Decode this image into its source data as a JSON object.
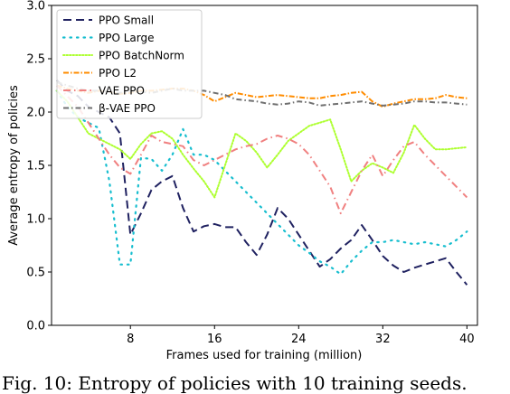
{
  "chart_data": {
    "type": "line",
    "title": "",
    "xlabel": "Frames used for training (million)",
    "ylabel": "Average entropy of policies",
    "xlim": [
      0.5,
      41
    ],
    "ylim": [
      0.0,
      3.0
    ],
    "xticks": [
      8,
      16,
      24,
      32,
      40
    ],
    "yticks": [
      0.0,
      0.5,
      1.0,
      1.5,
      2.0,
      2.5,
      3.0
    ],
    "ytick_labels": [
      "0.0",
      "0.5",
      "1.0",
      "1.5",
      "2.0",
      "2.5",
      "3.0"
    ],
    "grid": false,
    "legend_position": "top-left",
    "series": [
      {
        "name": "PPO Small",
        "color": "#1f2160",
        "x": [
          1,
          2,
          3,
          4,
          5,
          6,
          7,
          8,
          9,
          10,
          11,
          12,
          13,
          14,
          15,
          16,
          17,
          18,
          19,
          20,
          21,
          22,
          23,
          24,
          25,
          26,
          27,
          28,
          29,
          30,
          31,
          32,
          33,
          34,
          35,
          36,
          37,
          38,
          39,
          40
        ],
        "values": [
          2.3,
          2.2,
          2.15,
          2.05,
          2.0,
          1.95,
          1.8,
          0.85,
          1.05,
          1.27,
          1.35,
          1.4,
          1.1,
          0.88,
          0.93,
          0.95,
          0.92,
          0.92,
          0.78,
          0.66,
          0.85,
          1.1,
          1.0,
          0.85,
          0.7,
          0.55,
          0.62,
          0.72,
          0.8,
          0.94,
          0.8,
          0.65,
          0.56,
          0.5,
          0.54,
          0.57,
          0.6,
          0.63,
          0.5,
          0.38
        ]
      },
      {
        "name": "PPO Large",
        "color": "#17becf",
        "x": [
          1,
          2,
          3,
          4,
          5,
          6,
          7,
          8,
          9,
          10,
          11,
          12,
          13,
          14,
          15,
          16,
          17,
          18,
          19,
          20,
          21,
          22,
          23,
          24,
          25,
          26,
          27,
          28,
          29,
          30,
          31,
          32,
          33,
          34,
          35,
          36,
          37,
          38,
          39,
          40
        ],
        "values": [
          2.2,
          2.05,
          1.95,
          1.9,
          1.85,
          1.35,
          0.57,
          0.57,
          1.57,
          1.56,
          1.45,
          1.6,
          1.84,
          1.6,
          1.6,
          1.55,
          1.45,
          1.35,
          1.25,
          1.15,
          1.05,
          0.95,
          0.85,
          0.75,
          0.68,
          0.6,
          0.55,
          0.48,
          0.6,
          0.7,
          0.78,
          0.78,
          0.8,
          0.78,
          0.76,
          0.78,
          0.76,
          0.74,
          0.8,
          0.88
        ]
      },
      {
        "name": "PPO BatchNorm",
        "color": "#adff2f",
        "x": [
          1,
          2,
          3,
          4,
          5,
          6,
          7,
          8,
          9,
          10,
          11,
          12,
          13,
          14,
          15,
          16,
          17,
          18,
          19,
          20,
          21,
          22,
          23,
          24,
          25,
          26,
          27,
          28,
          29,
          30,
          31,
          32,
          33,
          34,
          35,
          36,
          37,
          38,
          39,
          40
        ],
        "values": [
          2.2,
          2.1,
          1.95,
          1.8,
          1.75,
          1.7,
          1.65,
          1.56,
          1.7,
          1.8,
          1.82,
          1.75,
          1.6,
          1.47,
          1.35,
          1.2,
          1.5,
          1.8,
          1.73,
          1.62,
          1.48,
          1.6,
          1.73,
          1.8,
          1.87,
          1.9,
          1.93,
          1.65,
          1.35,
          1.45,
          1.52,
          1.48,
          1.43,
          1.62,
          1.88,
          1.75,
          1.65,
          1.65,
          1.66,
          1.67
        ]
      },
      {
        "name": "PPO L2",
        "color": "#ff8c00",
        "x": [
          1,
          2,
          3,
          4,
          5,
          6,
          7,
          8,
          9,
          10,
          11,
          12,
          13,
          14,
          15,
          16,
          17,
          18,
          19,
          20,
          21,
          22,
          23,
          24,
          25,
          26,
          27,
          28,
          29,
          30,
          31,
          32,
          33,
          34,
          35,
          36,
          37,
          38,
          39,
          40
        ],
        "values": [
          2.25,
          2.22,
          2.2,
          2.18,
          2.2,
          2.19,
          2.17,
          2.18,
          2.2,
          2.2,
          2.21,
          2.22,
          2.22,
          2.2,
          2.16,
          2.1,
          2.14,
          2.18,
          2.16,
          2.14,
          2.15,
          2.16,
          2.15,
          2.14,
          2.13,
          2.13,
          2.15,
          2.16,
          2.18,
          2.19,
          2.1,
          2.05,
          2.08,
          2.1,
          2.12,
          2.12,
          2.13,
          2.16,
          2.14,
          2.13
        ]
      },
      {
        "name": "VAE PPO",
        "color": "#f08080",
        "x": [
          1,
          2,
          3,
          4,
          5,
          6,
          7,
          8,
          9,
          10,
          11,
          12,
          13,
          14,
          15,
          16,
          17,
          18,
          19,
          20,
          21,
          22,
          23,
          24,
          25,
          26,
          27,
          28,
          29,
          30,
          31,
          32,
          33,
          34,
          35,
          36,
          37,
          38,
          39,
          40
        ],
        "values": [
          2.25,
          2.15,
          2.05,
          1.9,
          1.75,
          1.6,
          1.48,
          1.42,
          1.6,
          1.78,
          1.72,
          1.7,
          1.68,
          1.55,
          1.5,
          1.55,
          1.6,
          1.65,
          1.68,
          1.7,
          1.75,
          1.78,
          1.75,
          1.7,
          1.6,
          1.45,
          1.3,
          1.05,
          1.25,
          1.45,
          1.6,
          1.4,
          1.55,
          1.68,
          1.72,
          1.6,
          1.5,
          1.4,
          1.3,
          1.2
        ]
      },
      {
        "name": "β-VAE PPO",
        "color": "#707070",
        "x": [
          1,
          2,
          3,
          4,
          5,
          6,
          7,
          8,
          9,
          10,
          11,
          12,
          13,
          14,
          15,
          16,
          17,
          18,
          19,
          20,
          21,
          22,
          23,
          24,
          25,
          26,
          27,
          28,
          29,
          30,
          31,
          32,
          33,
          34,
          35,
          36,
          37,
          38,
          39,
          40
        ],
        "values": [
          2.28,
          2.25,
          2.22,
          2.2,
          2.2,
          2.19,
          2.18,
          2.2,
          2.19,
          2.18,
          2.2,
          2.22,
          2.2,
          2.2,
          2.2,
          2.18,
          2.16,
          2.12,
          2.11,
          2.1,
          2.08,
          2.07,
          2.08,
          2.1,
          2.09,
          2.06,
          2.07,
          2.08,
          2.09,
          2.1,
          2.08,
          2.06,
          2.07,
          2.08,
          2.1,
          2.1,
          2.09,
          2.09,
          2.08,
          2.07
        ]
      }
    ]
  },
  "caption": "Fig. 10: Entropy of policies with 10 training seeds."
}
